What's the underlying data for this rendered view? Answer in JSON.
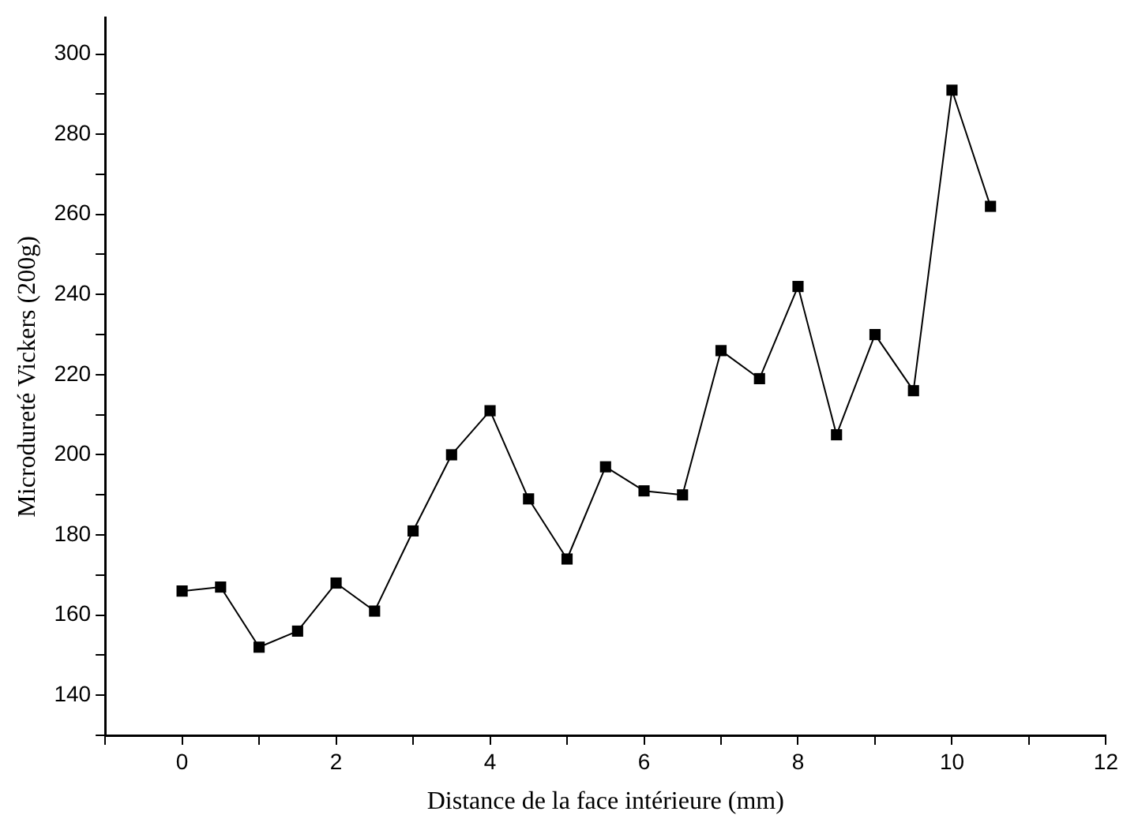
{
  "chart_data": {
    "type": "line",
    "xlabel": "Distance de la face intérieure (mm)",
    "ylabel": "Microdureté Vickers (200g)",
    "x": [
      0,
      0.5,
      1,
      1.5,
      2,
      2.5,
      3,
      3.5,
      4,
      4.5,
      5,
      5.5,
      6,
      6.5,
      7,
      7.5,
      8,
      8.5,
      9,
      9.5,
      10,
      10.5
    ],
    "series": [
      {
        "color": "#000000",
        "values": [
          166,
          167,
          152,
          156,
          168,
          161,
          181,
          200,
          211,
          189,
          174,
          197,
          191,
          190,
          226,
          219,
          242,
          205,
          230,
          216,
          291,
          262
        ]
      }
    ],
    "xlim": [
      -1,
      12
    ],
    "xticks": [
      {
        "value": -1,
        "label": null
      },
      0,
      {
        "value": 1,
        "label": null
      },
      2,
      {
        "value": 3,
        "label": null
      },
      4,
      {
        "value": 5,
        "label": null
      },
      6,
      {
        "value": 7,
        "label": null
      },
      8,
      {
        "value": 9,
        "label": null
      },
      10,
      {
        "value": 11,
        "label": null
      },
      12
    ],
    "ylim": [
      130,
      309
    ],
    "yticks": [
      {
        "value": 130,
        "label": null
      },
      140,
      {
        "value": 150,
        "label": null
      },
      160,
      {
        "value": 170,
        "label": null
      },
      180,
      {
        "value": 190,
        "label": null
      },
      200,
      {
        "value": 210,
        "label": null
      },
      220,
      {
        "value": 230,
        "label": null
      },
      240,
      {
        "value": 250,
        "label": null
      },
      260,
      {
        "value": 270,
        "label": null
      },
      280,
      {
        "value": 290,
        "label": null
      },
      300
    ],
    "grid": false,
    "legend": false,
    "marker": "square",
    "line_style": "solid"
  }
}
